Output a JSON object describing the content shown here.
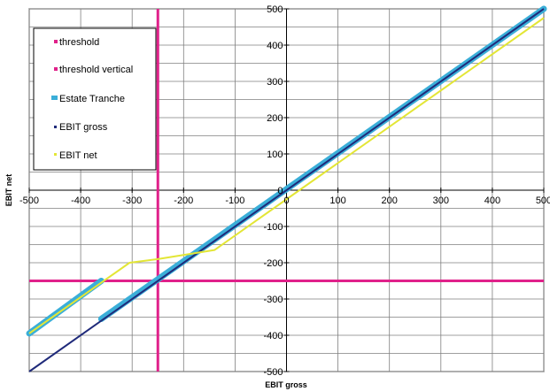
{
  "chart_data": {
    "type": "line",
    "xlabel": "EBIT gross",
    "ylabel": "EBIT net",
    "xlim": [
      -500,
      500
    ],
    "ylim": [
      -500,
      500
    ],
    "x_ticks": [
      "-500",
      "-400",
      "-300",
      "-200",
      "-100",
      "0",
      "100",
      "200",
      "300",
      "400",
      "500"
    ],
    "y_ticks": [
      "500",
      "400",
      "300",
      "200",
      "100",
      "0",
      "-100",
      "-200",
      "-300",
      "-400",
      "-500"
    ],
    "grid": true,
    "legend_position": "top-left",
    "series": [
      {
        "name": "threshold",
        "color": "#e0218a",
        "points": [
          [
            -500,
            -250
          ],
          [
            500,
            -250
          ]
        ]
      },
      {
        "name": "threshold vertical",
        "color": "#e0218a",
        "points": [
          [
            -250,
            -500
          ],
          [
            -250,
            500
          ]
        ]
      },
      {
        "name": "Estate Tranche",
        "color": "#3aaed8",
        "segments": [
          [
            [
              -500,
              -395
            ],
            [
              -360,
              -250
            ]
          ],
          [
            [
              -360,
              -355
            ],
            [
              500,
              500
            ]
          ]
        ]
      },
      {
        "name": "EBIT gross",
        "color": "#1f2a7a",
        "points": [
          [
            -500,
            -500
          ],
          [
            500,
            500
          ]
        ]
      },
      {
        "name": "EBIT net",
        "color": "#e3e636",
        "points": [
          [
            -500,
            -395
          ],
          [
            -305,
            -200
          ],
          [
            -250,
            -190
          ],
          [
            -140,
            -165
          ],
          [
            0,
            -25
          ],
          [
            500,
            475
          ]
        ]
      }
    ]
  }
}
